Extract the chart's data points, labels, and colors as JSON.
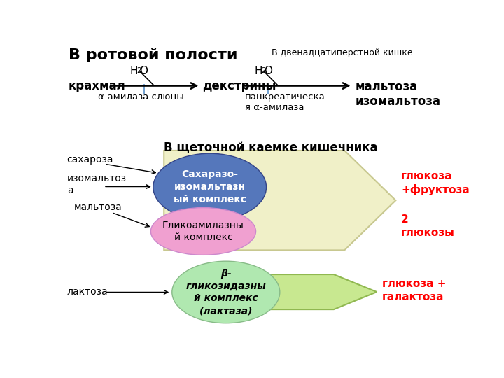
{
  "bg_color": "#ffffff",
  "title_oral": "В ротовой полости",
  "title_duodenum": "В двенадцатиперстной кишке",
  "title_brush": "В щеточной каемке кишечника",
  "label_starch": "крахмал",
  "label_dextrins": "декстрины",
  "label_amylase_saliva": "α-амилаза слюны",
  "label_pancreatic": "панкреатическа\nя α-амилаза",
  "label_maltose_iso": "мальтоза\nизомальтоза",
  "label_sucrose": "сахароза",
  "label_isomaltose": "изомальтоз\nа",
  "label_maltose": "мальтоза",
  "label_lactose": "лактоза",
  "ellipse1_text": "Сахаразо-\nизомальтазн\nый комплекс",
  "ellipse2_text": "Гликоамилазны\nй комплекс",
  "ellipse3_text": "β-\nгликозидазны\nй комплекс\n(лактаза)",
  "result1_text": "глюкоза\n+фруктоза",
  "result2_text": "2\nглюкозы",
  "result3_text": "глюкоза +\nгалактоза",
  "ellipse1_color": "#5577bb",
  "ellipse1_text_color": "#ffffff",
  "ellipse2_color": "#f0a0d0",
  "ellipse2_text_color": "#000000",
  "ellipse3_color": "#b0e8b0",
  "ellipse3_text_color": "#000000",
  "result_color": "#ff0000",
  "big_arrow_fill": "#f0f0c8",
  "big_arrow_edge": "#c8c890",
  "small_arrow_fill": "#c8e890",
  "small_arrow_edge": "#90b850"
}
